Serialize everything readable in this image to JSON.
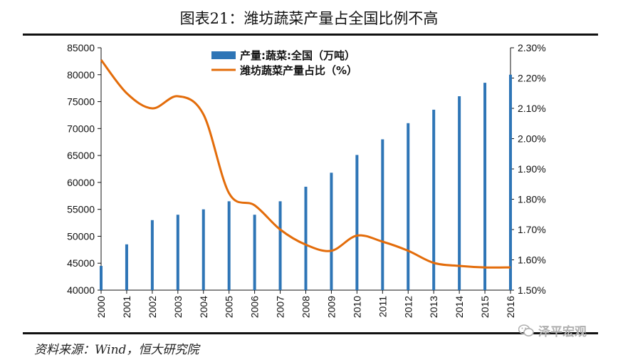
{
  "title": "图表21：潍坊蔬菜产量占全国比例不高",
  "source": "资料来源：Wind，恒大研究院",
  "watermark": "泽平宏观",
  "colors": {
    "bar": "#2e75b6",
    "line": "#e36c0a",
    "axis": "#111111"
  },
  "chart_data": {
    "type": "bar+line",
    "categories": [
      "2000",
      "2001",
      "2002",
      "2003",
      "2004",
      "2005",
      "2006",
      "2007",
      "2008",
      "2009",
      "2010",
      "2011",
      "2012",
      "2013",
      "2014",
      "2015",
      "2016"
    ],
    "series": [
      {
        "name": "产量:蔬菜:全国（万吨）",
        "type": "bar",
        "axis": "left",
        "values": [
          44500,
          48500,
          53000,
          54000,
          55000,
          56500,
          54000,
          56500,
          59200,
          61800,
          65100,
          68000,
          71000,
          73500,
          76000,
          78500,
          80000
        ]
      },
      {
        "name": "潍坊蔬菜产量占比（%）",
        "type": "line",
        "axis": "right",
        "values": [
          2.26,
          2.15,
          2.1,
          2.14,
          2.08,
          1.82,
          1.78,
          1.7,
          1.65,
          1.63,
          1.68,
          1.66,
          1.63,
          1.59,
          1.58,
          1.575,
          1.575
        ]
      }
    ],
    "left_axis": {
      "ylim": [
        40000,
        85000
      ],
      "ticks": [
        "40000",
        "45000",
        "50000",
        "55000",
        "60000",
        "65000",
        "70000",
        "75000",
        "80000",
        "85000"
      ]
    },
    "right_axis": {
      "ylim": [
        1.5,
        2.3
      ],
      "ticks": [
        "1.50%",
        "1.60%",
        "1.70%",
        "1.80%",
        "1.90%",
        "2.00%",
        "2.10%",
        "2.20%",
        "2.30%"
      ]
    },
    "legend": [
      "产量:蔬菜:全国（万吨）",
      "潍坊蔬菜产量占比（%）"
    ],
    "legend_position": "top-center"
  }
}
